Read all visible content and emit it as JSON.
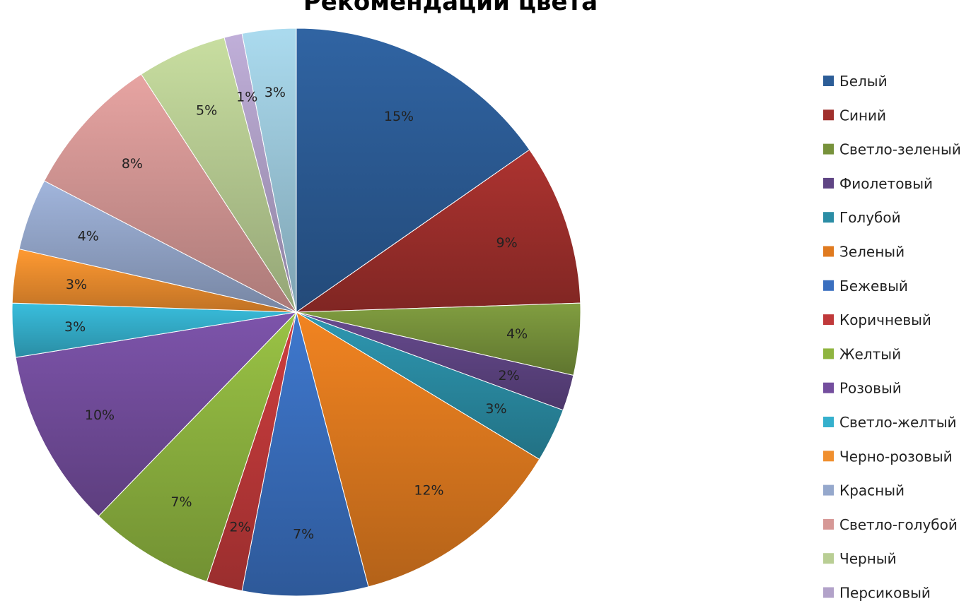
{
  "chart_data": {
    "type": "pie",
    "title": "Рекомендации цвета",
    "legend_position": "right",
    "categories": [
      "Белый",
      "Синий",
      "Светло-зеленый",
      "Фиолетовый",
      "Голубой",
      "Зеленый",
      "Бежевый",
      "Коричневый",
      "Желтый",
      "Розовый",
      "Светло-желтый",
      "Черно-розовый",
      "Красный",
      "Светло-голубой",
      "Черный",
      "Персиковый",
      ""
    ],
    "values": [
      15,
      9,
      4,
      2,
      3,
      12,
      7,
      2,
      7,
      10,
      3,
      3,
      4,
      8,
      5,
      1,
      3
    ],
    "labels": [
      "15%",
      "9%",
      "4%",
      "2%",
      "3%",
      "12%",
      "7%",
      "2%",
      "7%",
      "10%",
      "3%",
      "3%",
      "4%",
      "8%",
      "5%",
      "1%",
      "3%"
    ],
    "colors": [
      "#2c5d97",
      "#a02f2c",
      "#77923b",
      "#5f4584",
      "#2b8da5",
      "#e07a1f",
      "#3a6fbf",
      "#c0393a",
      "#8fb540",
      "#744e9e",
      "#35b0cd",
      "#f08f2e",
      "#95a8cc",
      "#d69896",
      "#b9ce94",
      "#b2a2c9",
      "#9ecbdd"
    ],
    "legend_count": 16
  }
}
